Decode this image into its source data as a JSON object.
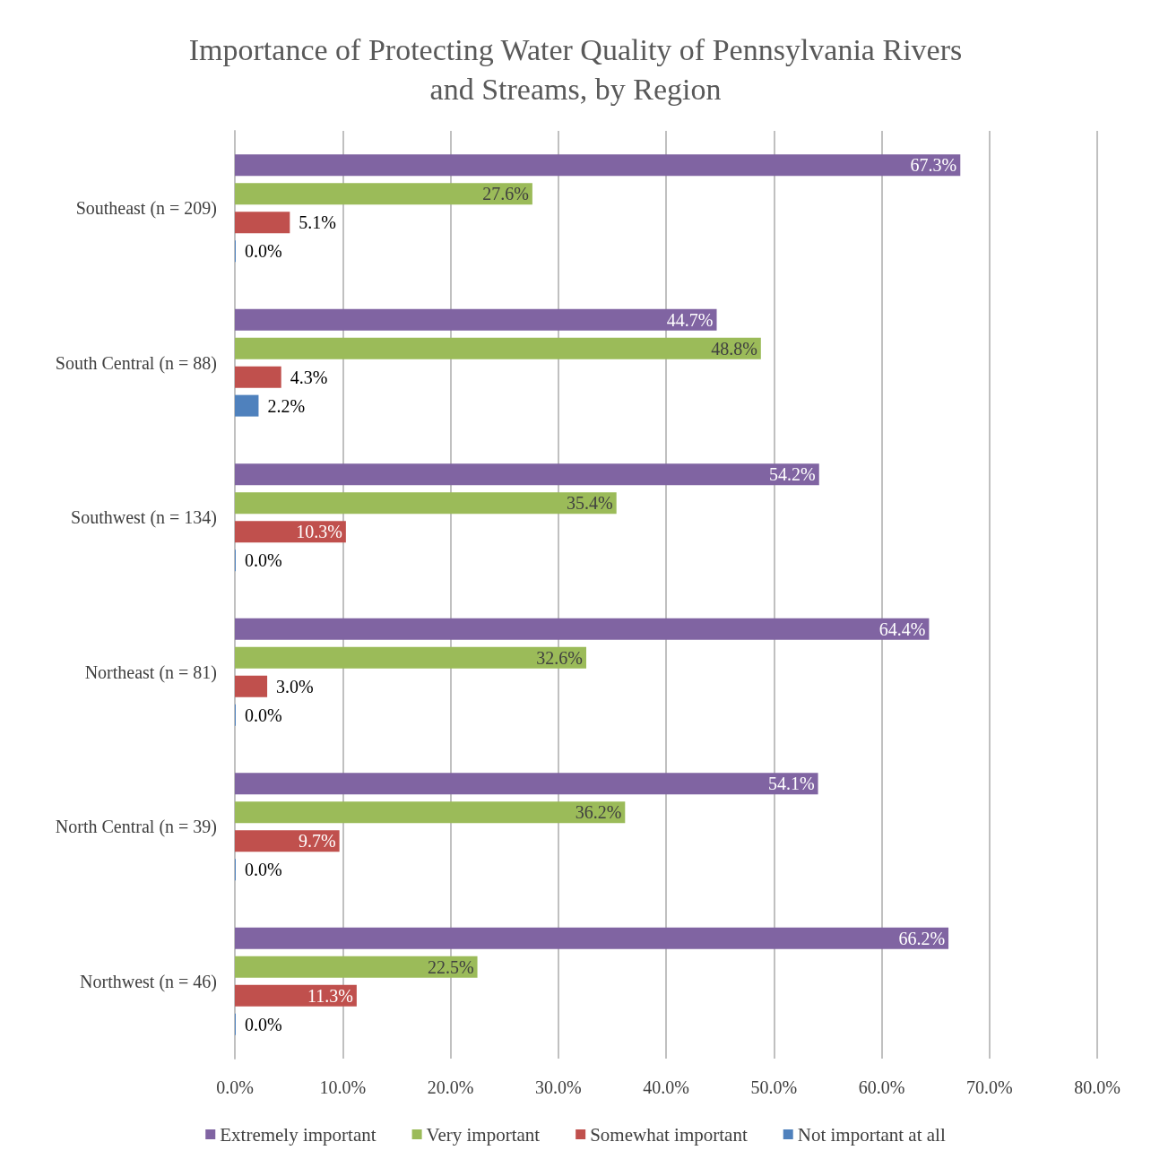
{
  "chart_data": {
    "type": "bar",
    "orientation": "horizontal",
    "title": "Importance of Protecting Water Quality of Pennsylvania Rivers\nand Streams, by Region",
    "categories": [
      "Southeast (n = 209)",
      "South Central (n = 88)",
      "Southwest (n = 134)",
      "Northeast (n = 81)",
      "North Central (n = 39)",
      "Northwest (n = 46)"
    ],
    "series": [
      {
        "name": "Extremely important",
        "color": "#8064a2",
        "values": [
          67.3,
          44.7,
          54.2,
          64.4,
          54.1,
          66.2
        ],
        "value_labels": [
          "67.3%",
          "44.7%",
          "54.2%",
          "64.4%",
          "54.1%",
          "66.2%"
        ]
      },
      {
        "name": "Very important",
        "color": "#9bbb59",
        "values": [
          27.6,
          48.8,
          35.4,
          32.6,
          36.2,
          22.5
        ],
        "value_labels": [
          "27.6%",
          "48.8%",
          "35.4%",
          "32.6%",
          "36.2%",
          "22.5%"
        ]
      },
      {
        "name": "Somewhat important",
        "color": "#c0504d",
        "values": [
          5.1,
          4.3,
          10.3,
          3.0,
          9.7,
          11.3
        ],
        "value_labels": [
          "5.1%",
          "4.3%",
          "10.3%",
          "3.0%",
          "9.7%",
          "11.3%"
        ]
      },
      {
        "name": "Not important at all",
        "color": "#4f81bd",
        "values": [
          0.0,
          2.2,
          0.0,
          0.0,
          0.0,
          0.0
        ],
        "value_labels": [
          "0.0%",
          "2.2%",
          "0.0%",
          "0.0%",
          "0.0%",
          "0.0%"
        ]
      }
    ],
    "xlim": [
      0,
      80
    ],
    "xticks": [
      {
        "value": 0,
        "label": "0.0%"
      },
      {
        "value": 10,
        "label": "10.0%"
      },
      {
        "value": 20,
        "label": "20.0%"
      },
      {
        "value": 30,
        "label": "30.0%"
      },
      {
        "value": 40,
        "label": "40.0%"
      },
      {
        "value": 50,
        "label": "50.0%"
      },
      {
        "value": 60,
        "label": "60.0%"
      },
      {
        "value": 70,
        "label": "70.0%"
      },
      {
        "value": 80,
        "label": "80.0%"
      }
    ],
    "grid": "x",
    "legend": "bottom"
  }
}
